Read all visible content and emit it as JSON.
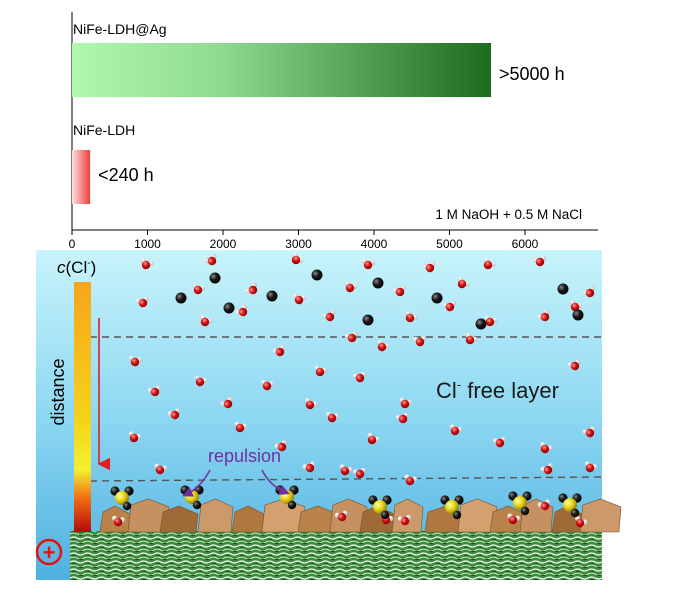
{
  "chart_data": {
    "type": "bar",
    "orientation": "horizontal",
    "categories": [
      "NiFe-LDH@Ag",
      "NiFe-LDH"
    ],
    "series": [
      {
        "values": [
          5550,
          240
        ]
      }
    ],
    "value_labels": [
      ">5000 h",
      "<240 h"
    ],
    "annotation": "1 M NaOH + 0.5 M NaCl",
    "xticks": [
      0,
      1000,
      2000,
      3000,
      4000,
      5000,
      6000
    ],
    "xlim": [
      0,
      6800
    ],
    "grid": false
  },
  "schematic": {
    "gradient_label": "c(Cl⁻)",
    "gradient_label_var": "c",
    "gradient_label_rest": "(Cl",
    "gradient_label_sup": "-",
    "gradient_label_close": ")",
    "axis_label": "distance",
    "free_layer_main": "Cl",
    "free_layer_sup": "-",
    "free_layer_rest": " free layer",
    "repulsion_label": "repulsion",
    "electrode_symbol": "+",
    "colors": {
      "water_top": "#c8f4fb",
      "water_bottom": "#4fb0e0",
      "bar_ag_start": "#b0f7b0",
      "bar_ag_end": "#1d6b1d",
      "bar_ldh": "#ee3c3c",
      "arrow_red": "#e02020",
      "repulsion_purple": "#7030a0",
      "electrode_sign": "#e81010"
    }
  }
}
